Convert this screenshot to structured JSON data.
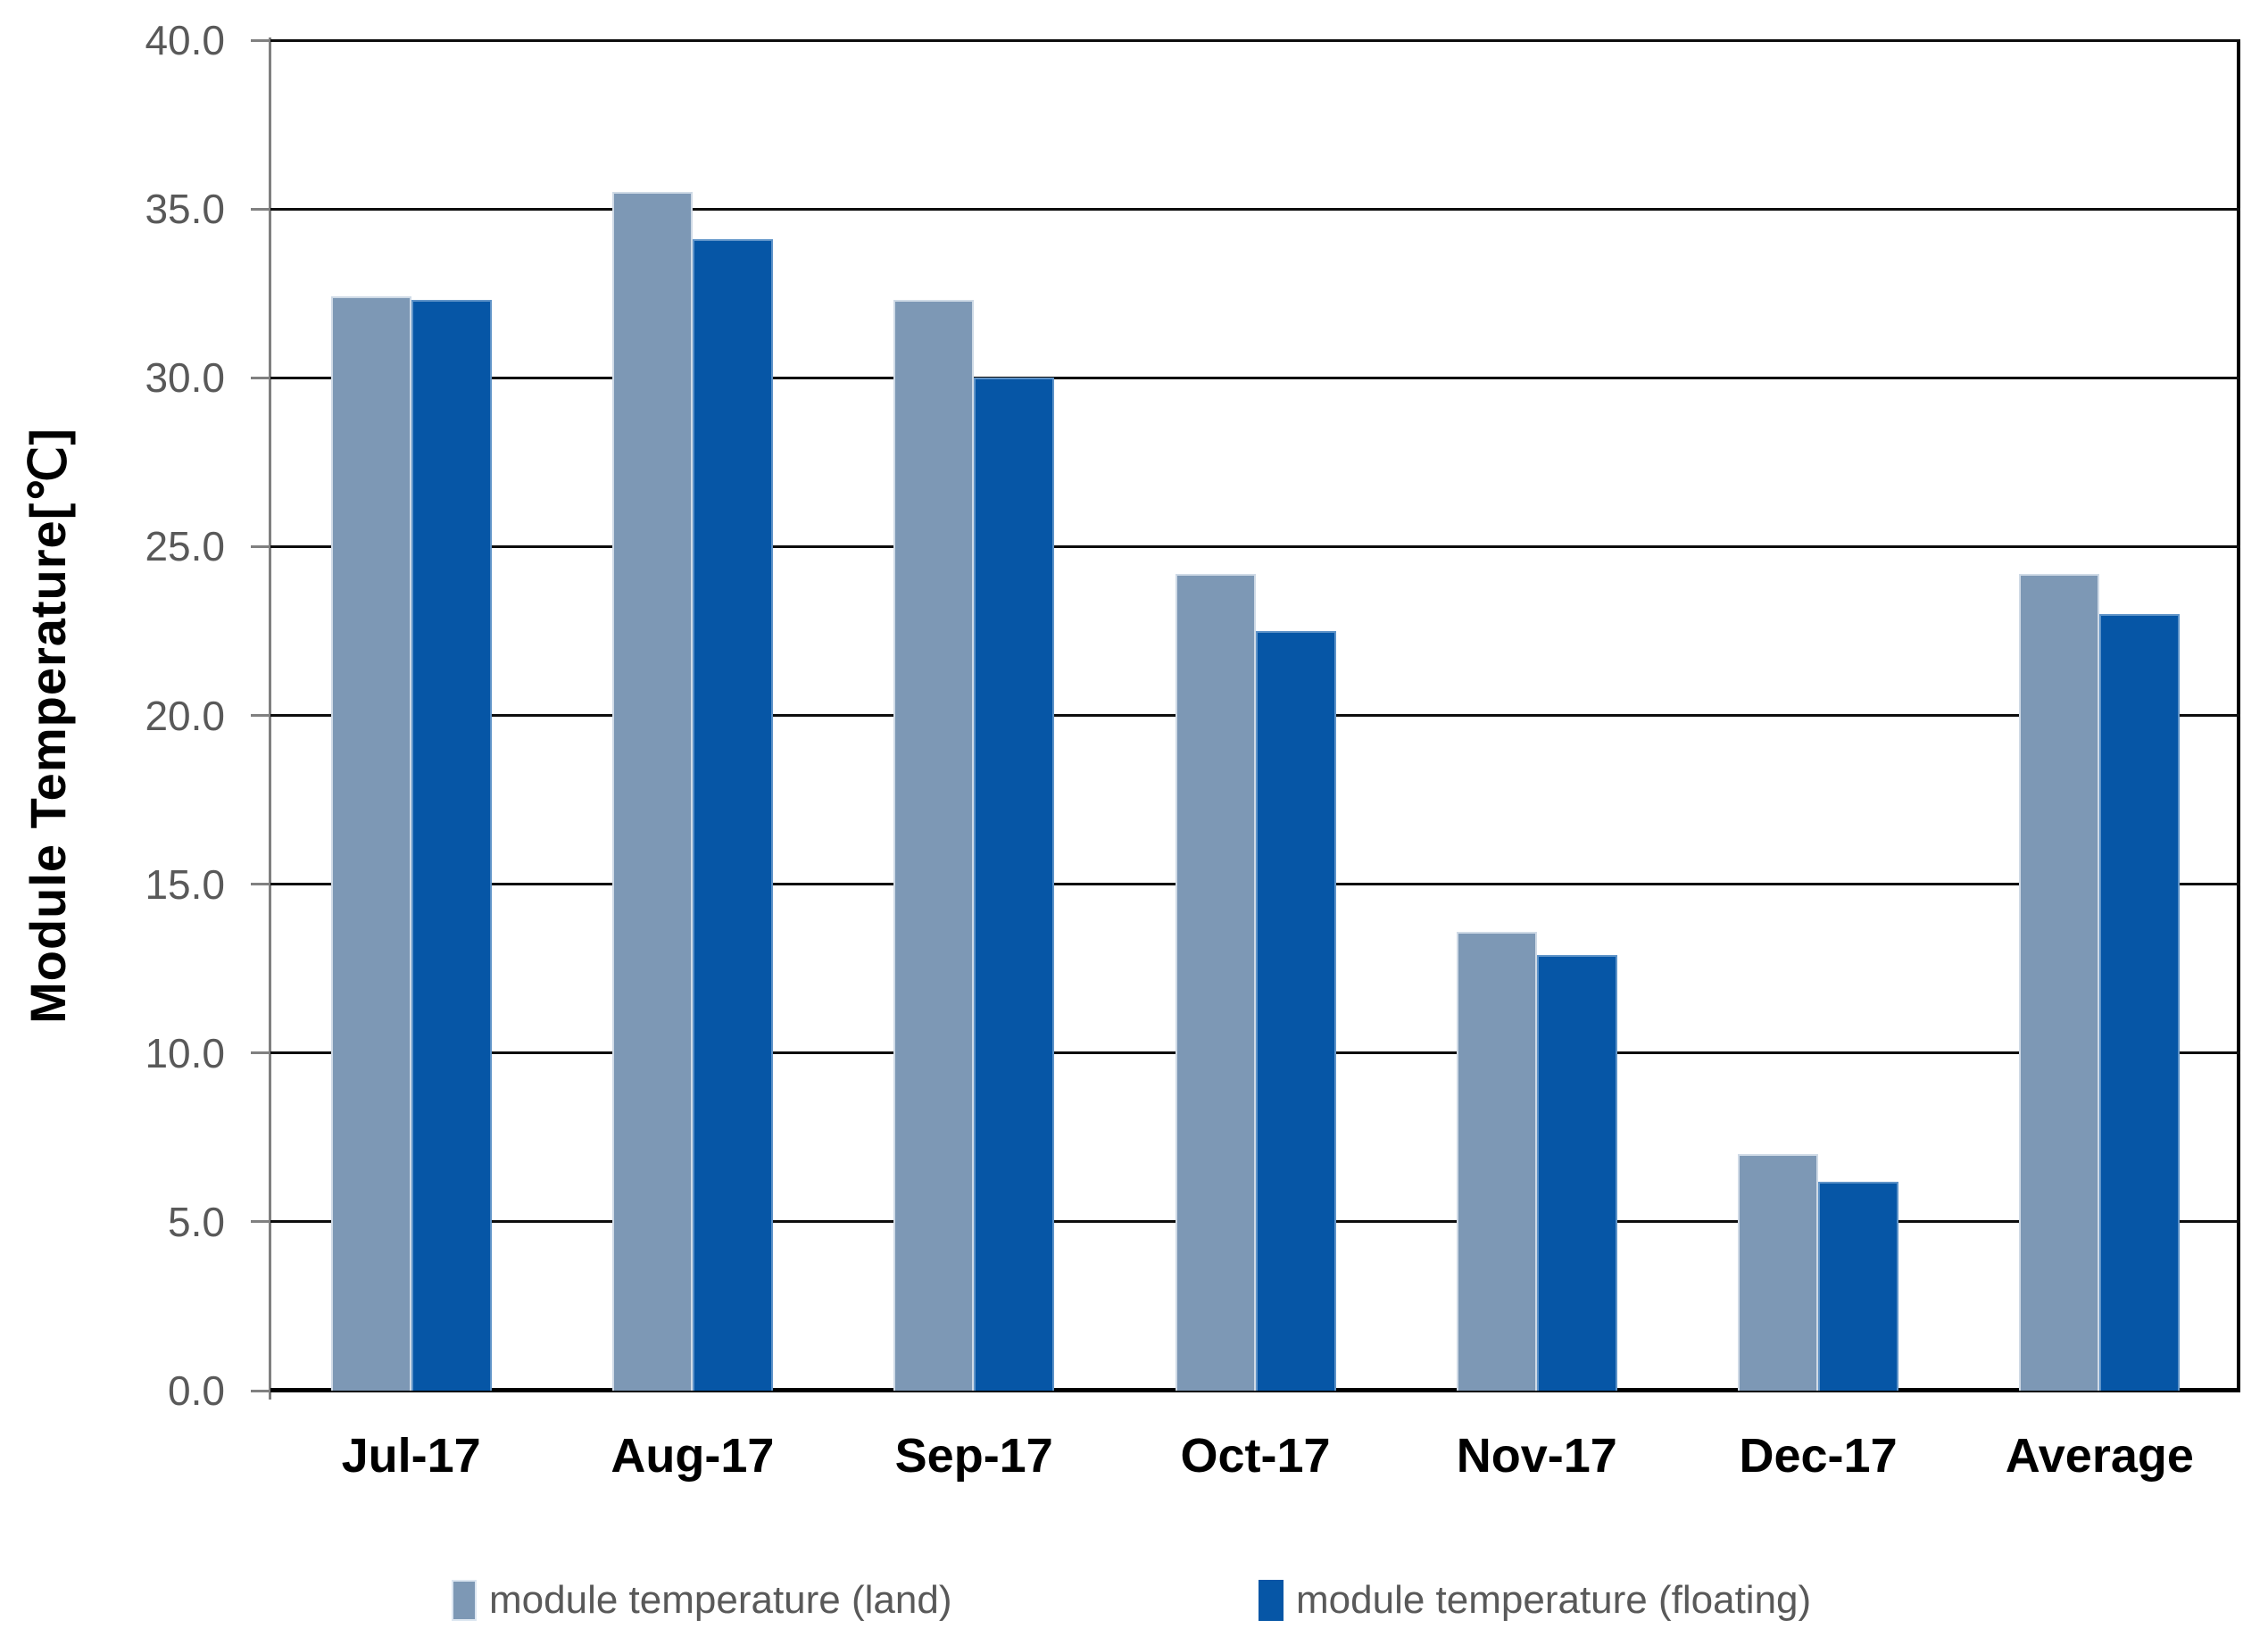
{
  "chart_data": {
    "type": "bar",
    "title": "",
    "xlabel": "",
    "ylabel": "Module Temperature[℃]",
    "ylim": [
      0,
      40
    ],
    "ytick_step": 5,
    "ytick_format_decimals": 1,
    "grid": true,
    "legend_position": "bottom",
    "categories": [
      "Jul-17",
      "Aug-17",
      "Sep-17",
      "Oct-17",
      "Nov-17",
      "Dec-17",
      "Average"
    ],
    "series": [
      {
        "name": "module temperature (land)",
        "color": "#7D98B5",
        "border_color": "#CFDAE6",
        "values": [
          32.4,
          35.5,
          32.3,
          24.2,
          13.6,
          7.0,
          24.2
        ]
      },
      {
        "name": "module temperature (floating)",
        "color": "#0656A6",
        "border_color": "#5E93C8",
        "values": [
          32.3,
          34.1,
          30.0,
          22.5,
          12.9,
          6.2,
          23.0
        ]
      }
    ],
    "axis_colors": {
      "tick_label": "#595959",
      "axis_line": "#808080",
      "gridline": "#0d0d0d",
      "category_label": "#000000"
    }
  }
}
